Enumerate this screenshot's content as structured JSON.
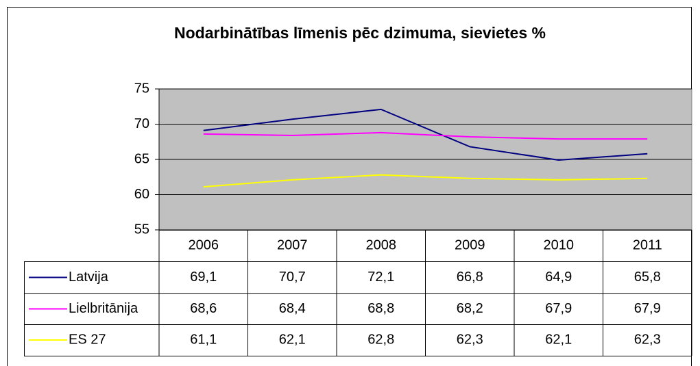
{
  "chart_data": {
    "type": "line",
    "title": "Nodarbinātības līmenis pēc dzimuma, sievietes %",
    "categories": [
      "2006",
      "2007",
      "2008",
      "2009",
      "2010",
      "2011"
    ],
    "series": [
      {
        "name": "Latvija",
        "color": "#000080",
        "values": [
          69.1,
          70.7,
          72.1,
          66.8,
          64.9,
          65.8
        ],
        "value_labels": [
          "69,1",
          "70,7",
          "72,1",
          "66,8",
          "64,9",
          "65,8"
        ]
      },
      {
        "name": "Lielbritānija",
        "color": "#ff00ff",
        "values": [
          68.6,
          68.4,
          68.8,
          68.2,
          67.9,
          67.9
        ],
        "value_labels": [
          "68,6",
          "68,4",
          "68,8",
          "68,2",
          "67,9",
          "67,9"
        ]
      },
      {
        "name": "ES 27",
        "color": "#ffff00",
        "values": [
          61.1,
          62.1,
          62.8,
          62.3,
          62.1,
          62.3
        ],
        "value_labels": [
          "61,1",
          "62,1",
          "62,8",
          "62,3",
          "62,1",
          "62,3"
        ]
      }
    ],
    "ylim": [
      55,
      75
    ],
    "yticks": [
      55,
      60,
      65,
      70,
      75
    ],
    "grid": true,
    "plot_background": "#c0c0c0"
  }
}
